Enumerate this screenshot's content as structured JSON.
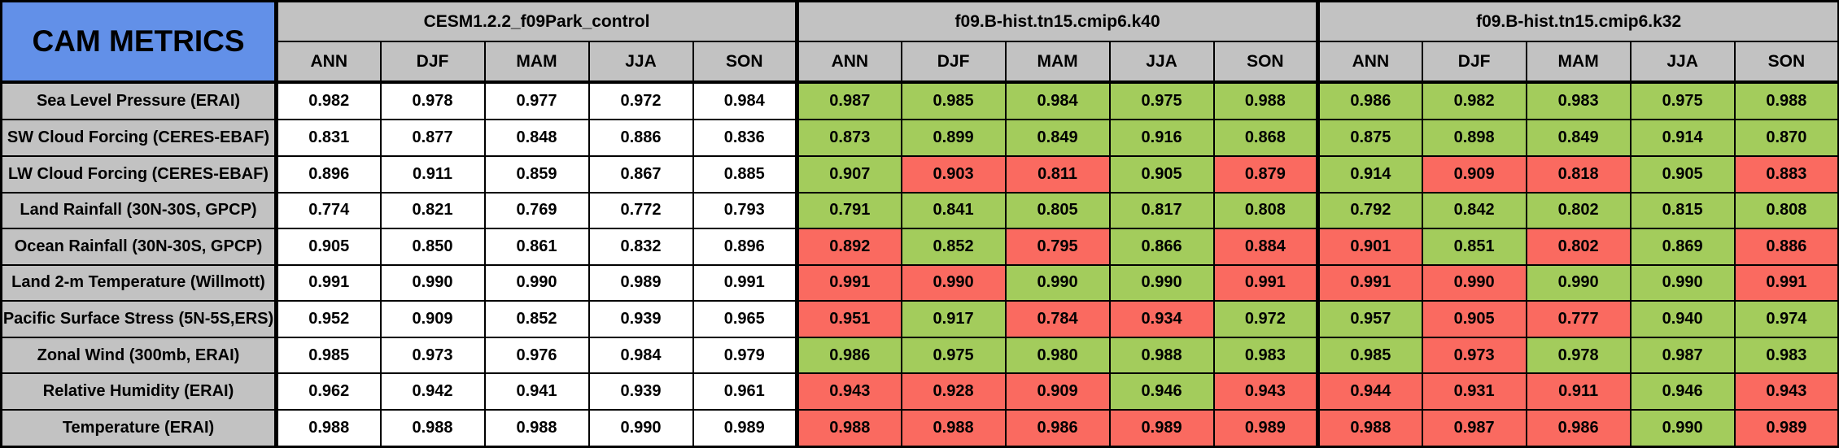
{
  "title": "CAM METRICS",
  "colors": {
    "header_blue": "#6290E8",
    "header_gray": "#C2C2C2",
    "good_green": "#A3CC5C",
    "bad_red": "#FA6A60",
    "cell_white": "#FFFFFF",
    "border_black": "#000000"
  },
  "chart_data": {
    "type": "table",
    "title": "CAM METRICS",
    "column_groups": [
      "CESM1.2.2_f09Park_control",
      "f09.B-hist.tn15.cmip6.k40",
      "f09.B-hist.tn15.cmip6.k32"
    ],
    "season_columns": [
      "ANN",
      "DJF",
      "MAM",
      "JJA",
      "SON"
    ],
    "color_codes": {
      "w": "plain white (control run)",
      "g": "green highlight",
      "r": "red highlight"
    },
    "rows": [
      {
        "label": "Sea Level Pressure (ERAI)",
        "groups": [
          {
            "values": [
              "0.982",
              "0.978",
              "0.977",
              "0.972",
              "0.984"
            ],
            "colors": [
              "w",
              "w",
              "w",
              "w",
              "w"
            ]
          },
          {
            "values": [
              "0.987",
              "0.985",
              "0.984",
              "0.975",
              "0.988"
            ],
            "colors": [
              "g",
              "g",
              "g",
              "g",
              "g"
            ]
          },
          {
            "values": [
              "0.986",
              "0.982",
              "0.983",
              "0.975",
              "0.988"
            ],
            "colors": [
              "g",
              "g",
              "g",
              "g",
              "g"
            ]
          }
        ]
      },
      {
        "label": "SW Cloud Forcing (CERES-EBAF)",
        "groups": [
          {
            "values": [
              "0.831",
              "0.877",
              "0.848",
              "0.886",
              "0.836"
            ],
            "colors": [
              "w",
              "w",
              "w",
              "w",
              "w"
            ]
          },
          {
            "values": [
              "0.873",
              "0.899",
              "0.849",
              "0.916",
              "0.868"
            ],
            "colors": [
              "g",
              "g",
              "g",
              "g",
              "g"
            ]
          },
          {
            "values": [
              "0.875",
              "0.898",
              "0.849",
              "0.914",
              "0.870"
            ],
            "colors": [
              "g",
              "g",
              "g",
              "g",
              "g"
            ]
          }
        ]
      },
      {
        "label": "LW Cloud Forcing (CERES-EBAF)",
        "groups": [
          {
            "values": [
              "0.896",
              "0.911",
              "0.859",
              "0.867",
              "0.885"
            ],
            "colors": [
              "w",
              "w",
              "w",
              "w",
              "w"
            ]
          },
          {
            "values": [
              "0.907",
              "0.903",
              "0.811",
              "0.905",
              "0.879"
            ],
            "colors": [
              "g",
              "r",
              "r",
              "g",
              "r"
            ]
          },
          {
            "values": [
              "0.914",
              "0.909",
              "0.818",
              "0.905",
              "0.883"
            ],
            "colors": [
              "g",
              "r",
              "r",
              "g",
              "r"
            ]
          }
        ]
      },
      {
        "label": "Land Rainfall (30N-30S, GPCP)",
        "groups": [
          {
            "values": [
              "0.774",
              "0.821",
              "0.769",
              "0.772",
              "0.793"
            ],
            "colors": [
              "w",
              "w",
              "w",
              "w",
              "w"
            ]
          },
          {
            "values": [
              "0.791",
              "0.841",
              "0.805",
              "0.817",
              "0.808"
            ],
            "colors": [
              "g",
              "g",
              "g",
              "g",
              "g"
            ]
          },
          {
            "values": [
              "0.792",
              "0.842",
              "0.802",
              "0.815",
              "0.808"
            ],
            "colors": [
              "g",
              "g",
              "g",
              "g",
              "g"
            ]
          }
        ]
      },
      {
        "label": "Ocean Rainfall (30N-30S, GPCP)",
        "groups": [
          {
            "values": [
              "0.905",
              "0.850",
              "0.861",
              "0.832",
              "0.896"
            ],
            "colors": [
              "w",
              "w",
              "w",
              "w",
              "w"
            ]
          },
          {
            "values": [
              "0.892",
              "0.852",
              "0.795",
              "0.866",
              "0.884"
            ],
            "colors": [
              "r",
              "g",
              "r",
              "g",
              "r"
            ]
          },
          {
            "values": [
              "0.901",
              "0.851",
              "0.802",
              "0.869",
              "0.886"
            ],
            "colors": [
              "r",
              "g",
              "r",
              "g",
              "r"
            ]
          }
        ]
      },
      {
        "label": "Land 2-m Temperature (Willmott)",
        "groups": [
          {
            "values": [
              "0.991",
              "0.990",
              "0.990",
              "0.989",
              "0.991"
            ],
            "colors": [
              "w",
              "w",
              "w",
              "w",
              "w"
            ]
          },
          {
            "values": [
              "0.991",
              "0.990",
              "0.990",
              "0.990",
              "0.991"
            ],
            "colors": [
              "r",
              "r",
              "g",
              "g",
              "r"
            ]
          },
          {
            "values": [
              "0.991",
              "0.990",
              "0.990",
              "0.990",
              "0.991"
            ],
            "colors": [
              "r",
              "r",
              "g",
              "g",
              "r"
            ]
          }
        ]
      },
      {
        "label": "Pacific Surface Stress (5N-5S,ERS)",
        "groups": [
          {
            "values": [
              "0.952",
              "0.909",
              "0.852",
              "0.939",
              "0.965"
            ],
            "colors": [
              "w",
              "w",
              "w",
              "w",
              "w"
            ]
          },
          {
            "values": [
              "0.951",
              "0.917",
              "0.784",
              "0.934",
              "0.972"
            ],
            "colors": [
              "r",
              "g",
              "r",
              "r",
              "g"
            ]
          },
          {
            "values": [
              "0.957",
              "0.905",
              "0.777",
              "0.940",
              "0.974"
            ],
            "colors": [
              "g",
              "r",
              "r",
              "g",
              "g"
            ]
          }
        ]
      },
      {
        "label": "Zonal Wind (300mb, ERAI)",
        "groups": [
          {
            "values": [
              "0.985",
              "0.973",
              "0.976",
              "0.984",
              "0.979"
            ],
            "colors": [
              "w",
              "w",
              "w",
              "w",
              "w"
            ]
          },
          {
            "values": [
              "0.986",
              "0.975",
              "0.980",
              "0.988",
              "0.983"
            ],
            "colors": [
              "g",
              "g",
              "g",
              "g",
              "g"
            ]
          },
          {
            "values": [
              "0.985",
              "0.973",
              "0.978",
              "0.987",
              "0.983"
            ],
            "colors": [
              "g",
              "r",
              "g",
              "g",
              "g"
            ]
          }
        ]
      },
      {
        "label": "Relative Humidity (ERAI)",
        "groups": [
          {
            "values": [
              "0.962",
              "0.942",
              "0.941",
              "0.939",
              "0.961"
            ],
            "colors": [
              "w",
              "w",
              "w",
              "w",
              "w"
            ]
          },
          {
            "values": [
              "0.943",
              "0.928",
              "0.909",
              "0.946",
              "0.943"
            ],
            "colors": [
              "r",
              "r",
              "r",
              "g",
              "r"
            ]
          },
          {
            "values": [
              "0.944",
              "0.931",
              "0.911",
              "0.946",
              "0.943"
            ],
            "colors": [
              "r",
              "r",
              "r",
              "g",
              "r"
            ]
          }
        ]
      },
      {
        "label": "Temperature (ERAI)",
        "groups": [
          {
            "values": [
              "0.988",
              "0.988",
              "0.988",
              "0.990",
              "0.989"
            ],
            "colors": [
              "w",
              "w",
              "w",
              "w",
              "w"
            ]
          },
          {
            "values": [
              "0.988",
              "0.988",
              "0.986",
              "0.989",
              "0.989"
            ],
            "colors": [
              "r",
              "r",
              "r",
              "r",
              "r"
            ]
          },
          {
            "values": [
              "0.988",
              "0.987",
              "0.986",
              "0.990",
              "0.989"
            ],
            "colors": [
              "r",
              "r",
              "r",
              "g",
              "r"
            ]
          }
        ]
      }
    ]
  }
}
